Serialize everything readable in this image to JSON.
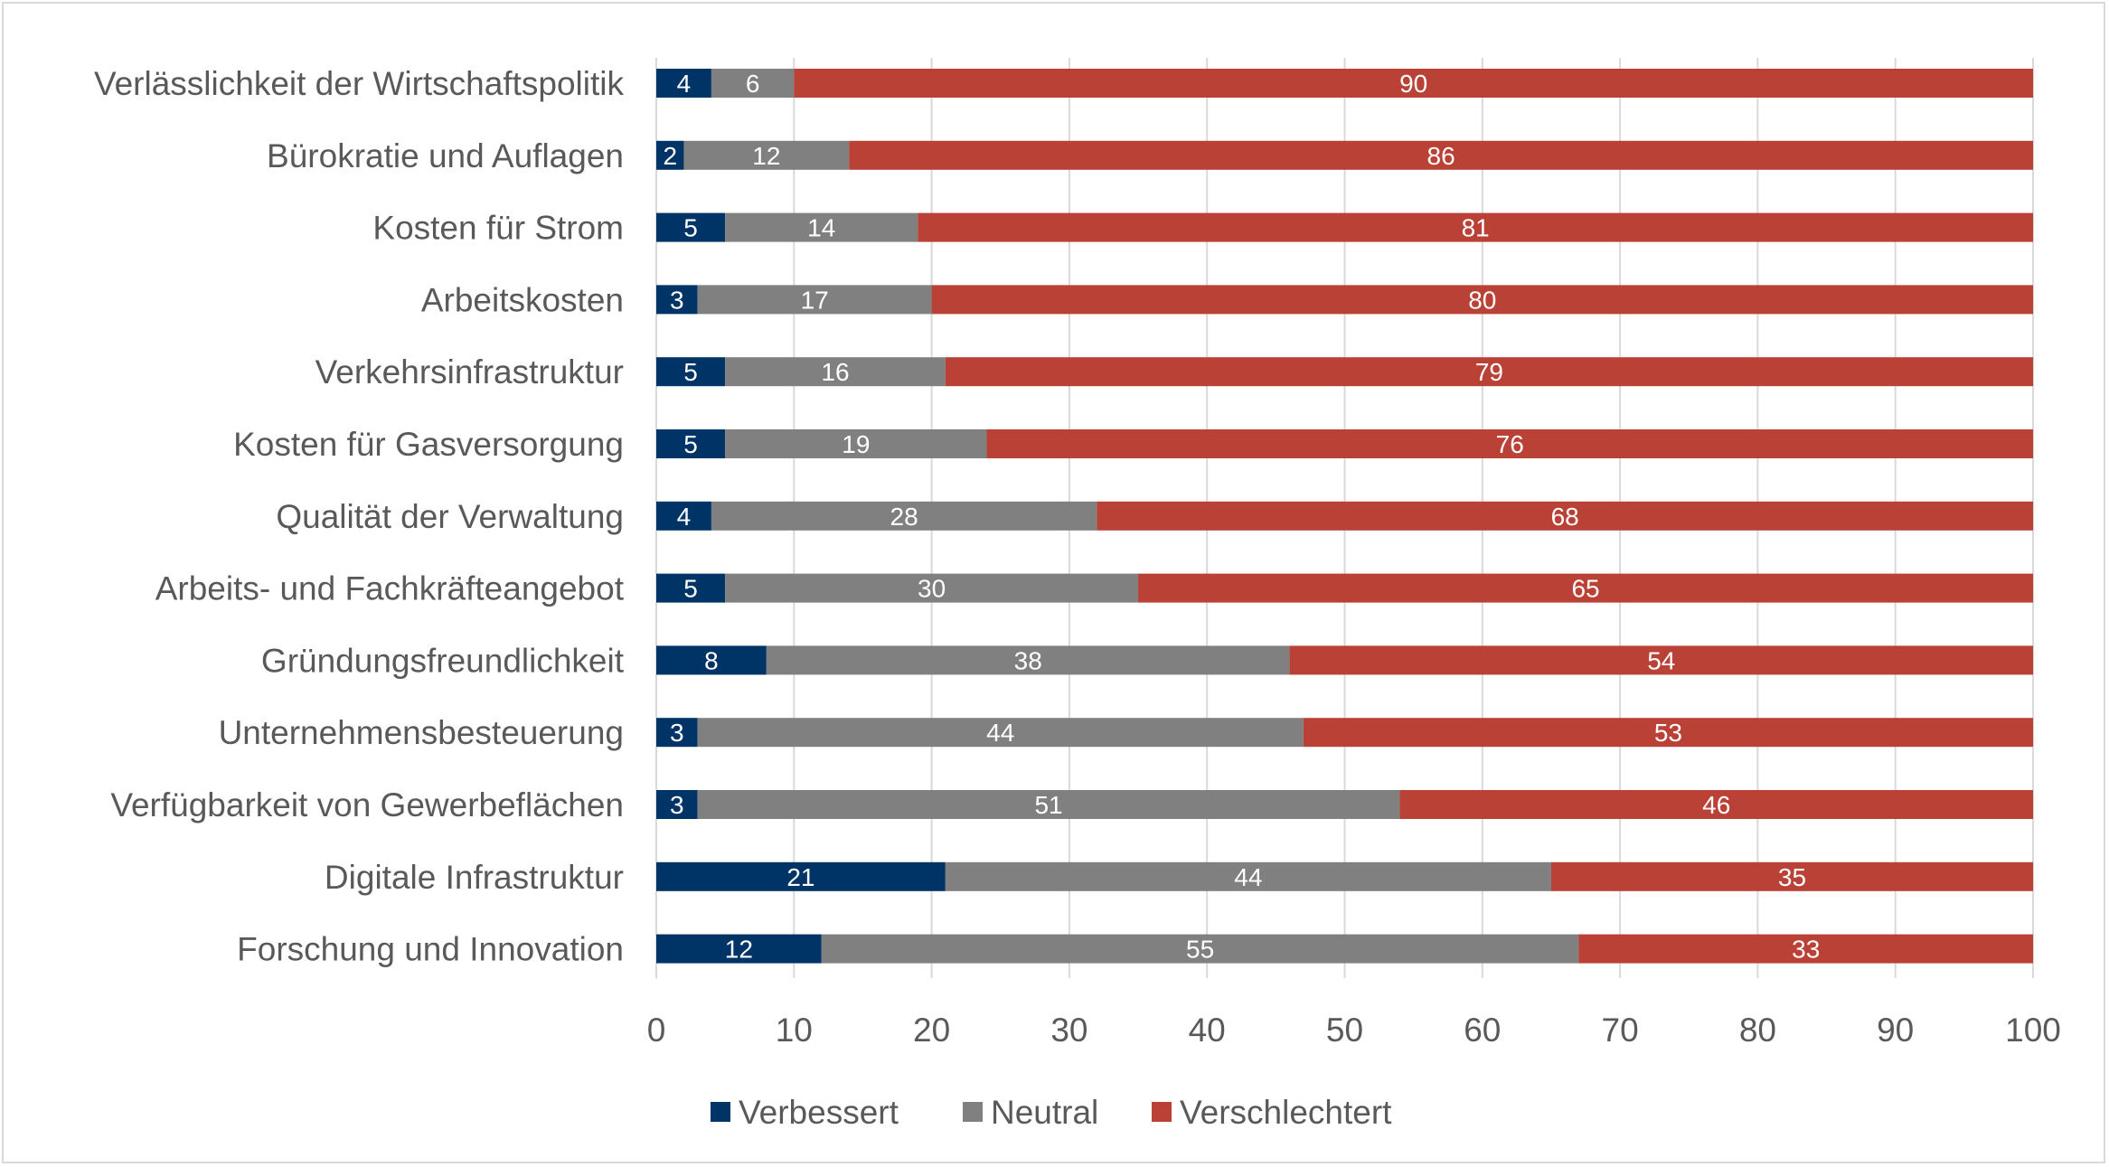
{
  "chart_data": {
    "type": "bar",
    "orientation": "horizontal",
    "stacked": true,
    "categories": [
      "Verlässlichkeit der Wirtschaftspolitik",
      "Bürokratie und Auflagen",
      "Kosten für Strom",
      "Arbeitskosten",
      "Verkehrsinfrastruktur",
      "Kosten für Gasversorgung",
      "Qualität der Verwaltung",
      "Arbeits- und Fachkräfteangebot",
      "Gründungsfreundlichkeit",
      "Unternehmensbesteuerung",
      "Verfügbarkeit von Gewerbeflächen",
      "Digitale Infrastruktur",
      "Forschung und Innovation"
    ],
    "series": [
      {
        "name": "Verbessert",
        "color": "#003366",
        "values": [
          4,
          2,
          5,
          3,
          5,
          5,
          4,
          5,
          8,
          3,
          3,
          21,
          12
        ]
      },
      {
        "name": "Neutral",
        "color": "#808080",
        "values": [
          6,
          12,
          14,
          17,
          16,
          19,
          28,
          30,
          38,
          44,
          51,
          44,
          55
        ]
      },
      {
        "name": "Verschlechtert",
        "color": "#b94136",
        "values": [
          90,
          86,
          81,
          80,
          79,
          76,
          68,
          65,
          54,
          53,
          46,
          35,
          33
        ]
      }
    ],
    "xlim": [
      0,
      100
    ],
    "xticks": [
      0,
      10,
      20,
      30,
      40,
      50,
      60,
      70,
      80,
      90,
      100
    ],
    "grid": "vertical",
    "legend": "bottom",
    "title": "",
    "xlabel": "",
    "ylabel": ""
  }
}
